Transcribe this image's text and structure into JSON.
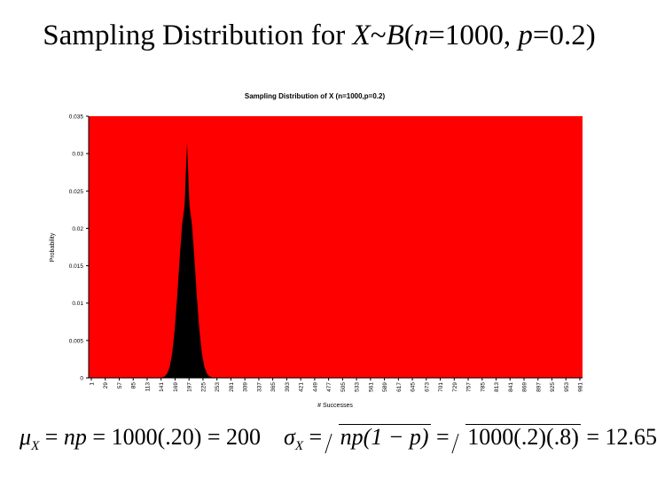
{
  "slide": {
    "title_parts": [
      "Sampling Distribution for ",
      "X",
      "~",
      "B",
      "(",
      "n",
      "=1000, ",
      "p",
      "=0.2)"
    ],
    "formula_mu": {
      "symbol": "μ",
      "sub": "X",
      "eq1": " = ",
      "np": "np",
      "eq2": " = 1000(.20) = 200"
    },
    "formula_sigma": {
      "symbol": "σ",
      "sub": "X",
      "eq1": " = ",
      "radicand1": "np(1 − p)",
      "eq2": " = ",
      "radicand2": "1000(.2)(.8)",
      "eq3": " = 12.65"
    }
  },
  "chart_data": {
    "type": "area",
    "title": "Sampling Distribution of X (n=1000,p=0.2)",
    "xlabel": "# Successes",
    "ylabel": "Probability",
    "xlim": [
      1,
      1000
    ],
    "ylim": [
      0,
      0.035
    ],
    "y_ticks": [
      0,
      0.005,
      0.01,
      0.015,
      0.02,
      0.025,
      0.03,
      0.035
    ],
    "y_tick_labels": [
      "0",
      "0.005",
      "0.01",
      "0.015",
      "0.02",
      "0.025",
      "0.03",
      "0.035"
    ],
    "x_tick_labels": [
      "1",
      "29",
      "57",
      "85",
      "113",
      "141",
      "169",
      "197",
      "225",
      "253",
      "281",
      "309",
      "337",
      "365",
      "393",
      "421",
      "449",
      "477",
      "505",
      "533",
      "561",
      "589",
      "617",
      "645",
      "673",
      "701",
      "729",
      "757",
      "785",
      "813",
      "841",
      "869",
      "897",
      "925",
      "953",
      "981"
    ],
    "series": [
      {
        "x": [
          150,
          155,
          160,
          165,
          170,
          175,
          180,
          185,
          190,
          195,
          200,
          205,
          210,
          215,
          220,
          225,
          230,
          235,
          240,
          245,
          250
        ],
        "y": [
          0.0001,
          0.0002,
          0.0006,
          0.0015,
          0.0033,
          0.0064,
          0.0108,
          0.0159,
          0.0205,
          0.023,
          0.0315,
          0.023,
          0.0205,
          0.0159,
          0.0108,
          0.0064,
          0.0033,
          0.0015,
          0.0006,
          0.0002,
          0.0001
        ]
      }
    ],
    "grid": false,
    "colors": {
      "plot_background": "#ff0000",
      "fill": "#000000",
      "axis": "#000000"
    }
  }
}
